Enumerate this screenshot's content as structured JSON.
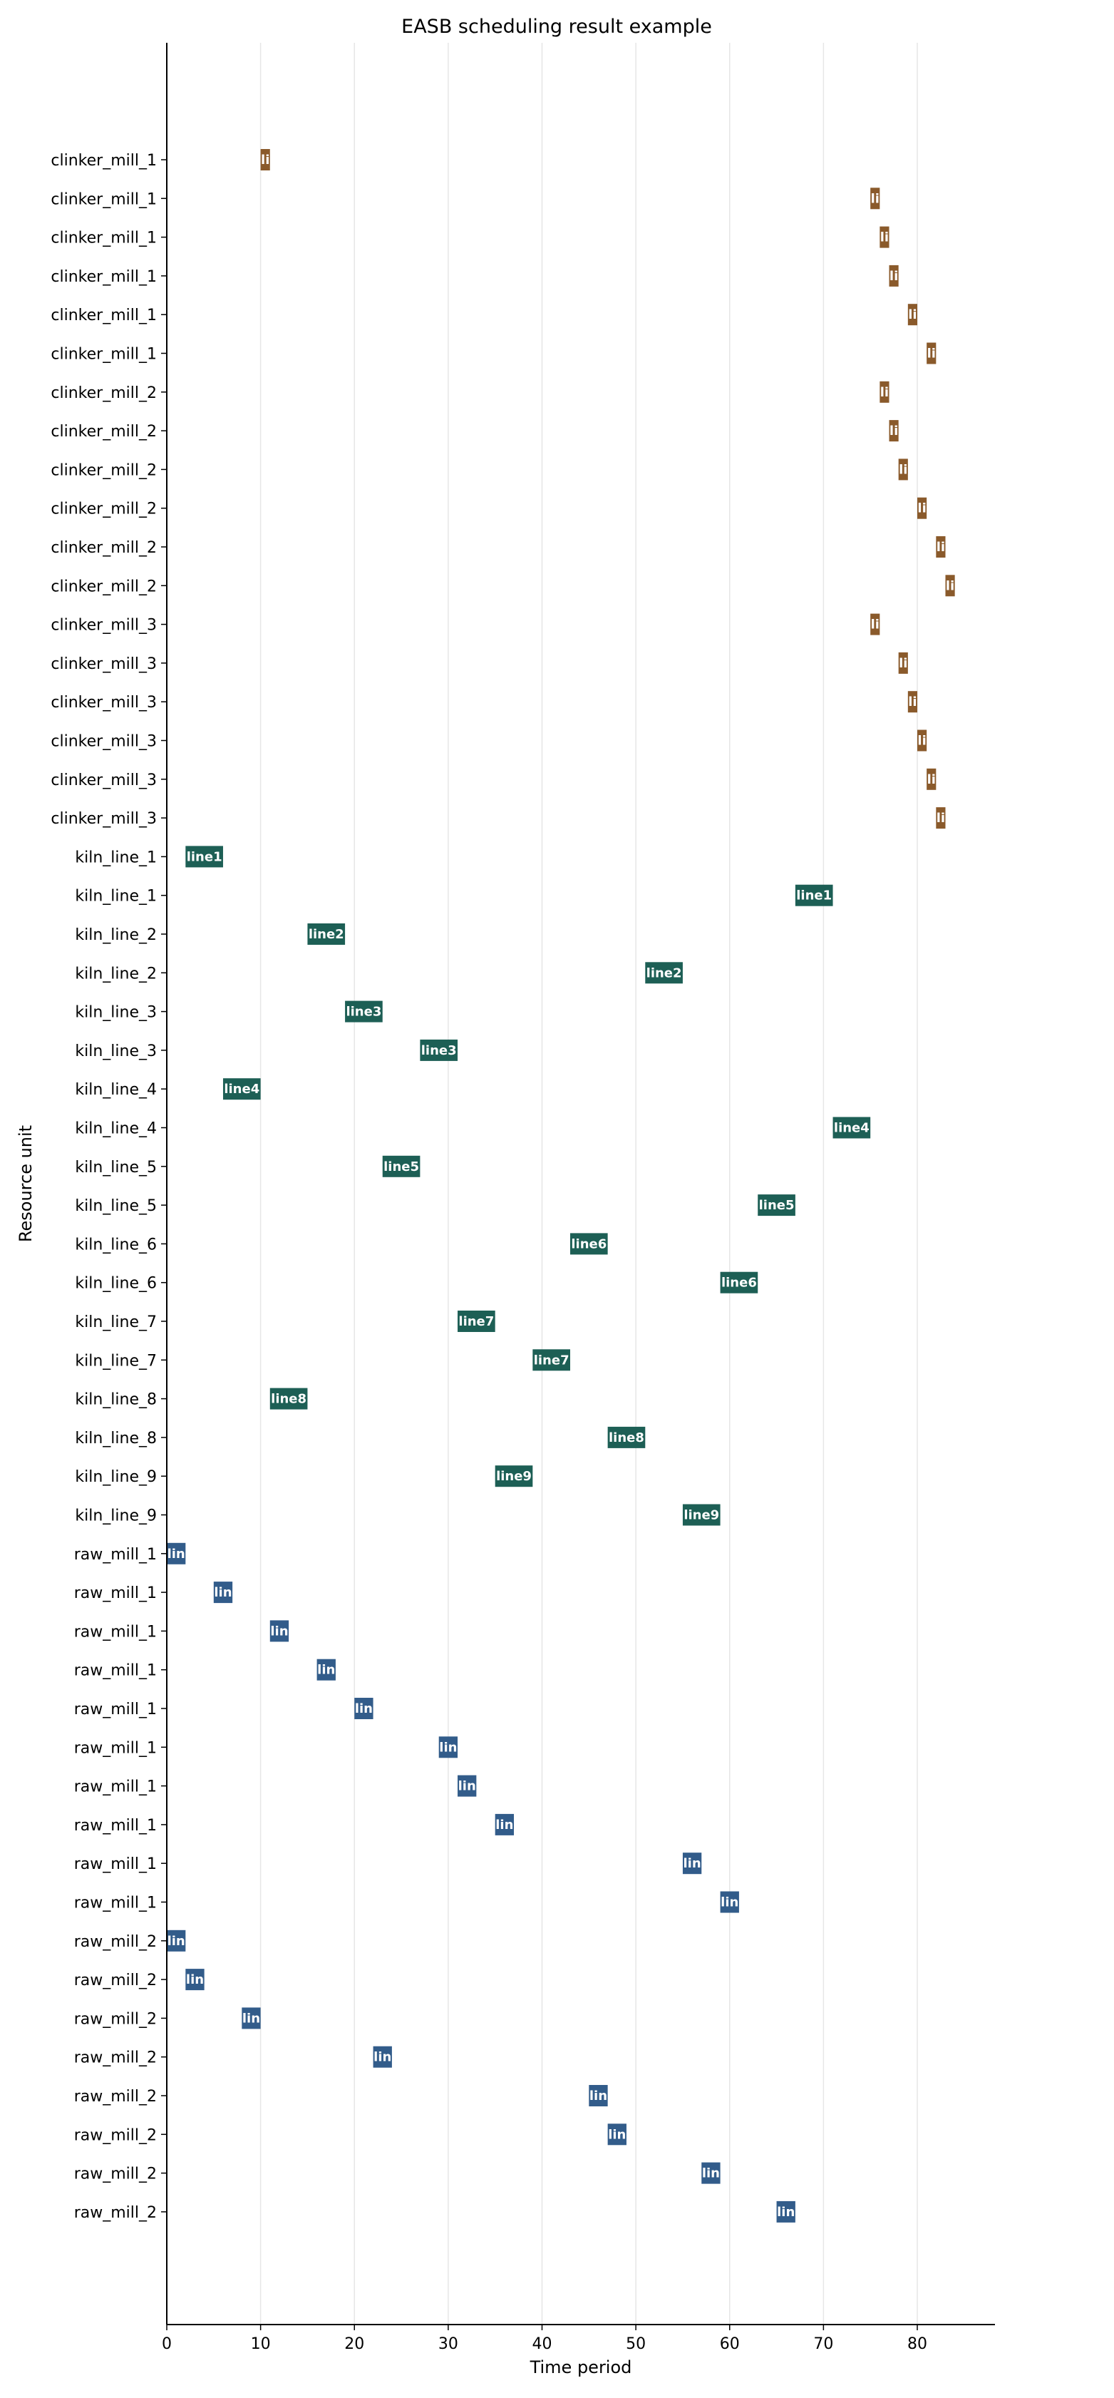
{
  "chart_data": {
    "type": "gantt",
    "title": "EASB scheduling result example",
    "xlabel": "Time period",
    "ylabel": "Resource unit",
    "xlim": [
      0,
      88
    ],
    "x_ticks": [
      0,
      10,
      20,
      30,
      40,
      50,
      60,
      70,
      80
    ],
    "grid": "vertical",
    "colors": {
      "clinker_mill": "#8a5a2b",
      "kiln_line": "#1d5f55",
      "raw_mill": "#325c8a",
      "grid": "#e6e6e6",
      "axis": "#000000"
    },
    "rows": [
      {
        "label": "clinker_mill_1",
        "group": "clinker_mill",
        "start": 10,
        "end": 11,
        "text": "li"
      },
      {
        "label": "clinker_mill_1",
        "group": "clinker_mill",
        "start": 75,
        "end": 76,
        "text": "li"
      },
      {
        "label": "clinker_mill_1",
        "group": "clinker_mill",
        "start": 76,
        "end": 77,
        "text": "li"
      },
      {
        "label": "clinker_mill_1",
        "group": "clinker_mill",
        "start": 77,
        "end": 78,
        "text": "li"
      },
      {
        "label": "clinker_mill_1",
        "group": "clinker_mill",
        "start": 79,
        "end": 80,
        "text": "li"
      },
      {
        "label": "clinker_mill_1",
        "group": "clinker_mill",
        "start": 81,
        "end": 82,
        "text": "li"
      },
      {
        "label": "clinker_mill_2",
        "group": "clinker_mill",
        "start": 76,
        "end": 77,
        "text": "li"
      },
      {
        "label": "clinker_mill_2",
        "group": "clinker_mill",
        "start": 77,
        "end": 78,
        "text": "li"
      },
      {
        "label": "clinker_mill_2",
        "group": "clinker_mill",
        "start": 78,
        "end": 79,
        "text": "li"
      },
      {
        "label": "clinker_mill_2",
        "group": "clinker_mill",
        "start": 80,
        "end": 81,
        "text": "li"
      },
      {
        "label": "clinker_mill_2",
        "group": "clinker_mill",
        "start": 82,
        "end": 83,
        "text": "li"
      },
      {
        "label": "clinker_mill_2",
        "group": "clinker_mill",
        "start": 83,
        "end": 84,
        "text": "li"
      },
      {
        "label": "clinker_mill_3",
        "group": "clinker_mill",
        "start": 75,
        "end": 76,
        "text": "li"
      },
      {
        "label": "clinker_mill_3",
        "group": "clinker_mill",
        "start": 78,
        "end": 79,
        "text": "li"
      },
      {
        "label": "clinker_mill_3",
        "group": "clinker_mill",
        "start": 79,
        "end": 80,
        "text": "li"
      },
      {
        "label": "clinker_mill_3",
        "group": "clinker_mill",
        "start": 80,
        "end": 81,
        "text": "li"
      },
      {
        "label": "clinker_mill_3",
        "group": "clinker_mill",
        "start": 81,
        "end": 82,
        "text": "li"
      },
      {
        "label": "clinker_mill_3",
        "group": "clinker_mill",
        "start": 82,
        "end": 83,
        "text": "li"
      },
      {
        "label": "kiln_line_1",
        "group": "kiln_line",
        "start": 2,
        "end": 6,
        "text": "line1"
      },
      {
        "label": "kiln_line_1",
        "group": "kiln_line",
        "start": 67,
        "end": 71,
        "text": "line1"
      },
      {
        "label": "kiln_line_2",
        "group": "kiln_line",
        "start": 15,
        "end": 19,
        "text": "line2"
      },
      {
        "label": "kiln_line_2",
        "group": "kiln_line",
        "start": 51,
        "end": 55,
        "text": "line2"
      },
      {
        "label": "kiln_line_3",
        "group": "kiln_line",
        "start": 19,
        "end": 23,
        "text": "line3"
      },
      {
        "label": "kiln_line_3",
        "group": "kiln_line",
        "start": 27,
        "end": 31,
        "text": "line3"
      },
      {
        "label": "kiln_line_4",
        "group": "kiln_line",
        "start": 6,
        "end": 10,
        "text": "line4"
      },
      {
        "label": "kiln_line_4",
        "group": "kiln_line",
        "start": 71,
        "end": 75,
        "text": "line4"
      },
      {
        "label": "kiln_line_5",
        "group": "kiln_line",
        "start": 23,
        "end": 27,
        "text": "line5"
      },
      {
        "label": "kiln_line_5",
        "group": "kiln_line",
        "start": 63,
        "end": 67,
        "text": "line5"
      },
      {
        "label": "kiln_line_6",
        "group": "kiln_line",
        "start": 43,
        "end": 47,
        "text": "line6"
      },
      {
        "label": "kiln_line_6",
        "group": "kiln_line",
        "start": 59,
        "end": 63,
        "text": "line6"
      },
      {
        "label": "kiln_line_7",
        "group": "kiln_line",
        "start": 31,
        "end": 35,
        "text": "line7"
      },
      {
        "label": "kiln_line_7",
        "group": "kiln_line",
        "start": 39,
        "end": 43,
        "text": "line7"
      },
      {
        "label": "kiln_line_8",
        "group": "kiln_line",
        "start": 11,
        "end": 15,
        "text": "line8"
      },
      {
        "label": "kiln_line_8",
        "group": "kiln_line",
        "start": 47,
        "end": 51,
        "text": "line8"
      },
      {
        "label": "kiln_line_9",
        "group": "kiln_line",
        "start": 35,
        "end": 39,
        "text": "line9"
      },
      {
        "label": "kiln_line_9",
        "group": "kiln_line",
        "start": 55,
        "end": 59,
        "text": "line9"
      },
      {
        "label": "raw_mill_1",
        "group": "raw_mill",
        "start": 0,
        "end": 2,
        "text": "lin"
      },
      {
        "label": "raw_mill_1",
        "group": "raw_mill",
        "start": 5,
        "end": 7,
        "text": "lin"
      },
      {
        "label": "raw_mill_1",
        "group": "raw_mill",
        "start": 11,
        "end": 13,
        "text": "lin"
      },
      {
        "label": "raw_mill_1",
        "group": "raw_mill",
        "start": 16,
        "end": 18,
        "text": "lin"
      },
      {
        "label": "raw_mill_1",
        "group": "raw_mill",
        "start": 20,
        "end": 22,
        "text": "lin"
      },
      {
        "label": "raw_mill_1",
        "group": "raw_mill",
        "start": 29,
        "end": 31,
        "text": "lin"
      },
      {
        "label": "raw_mill_1",
        "group": "raw_mill",
        "start": 31,
        "end": 33,
        "text": "lin"
      },
      {
        "label": "raw_mill_1",
        "group": "raw_mill",
        "start": 35,
        "end": 37,
        "text": "lin"
      },
      {
        "label": "raw_mill_1",
        "group": "raw_mill",
        "start": 55,
        "end": 57,
        "text": "lin"
      },
      {
        "label": "raw_mill_1",
        "group": "raw_mill",
        "start": 59,
        "end": 61,
        "text": "lin"
      },
      {
        "label": "raw_mill_2",
        "group": "raw_mill",
        "start": 0,
        "end": 2,
        "text": "lin"
      },
      {
        "label": "raw_mill_2",
        "group": "raw_mill",
        "start": 2,
        "end": 4,
        "text": "lin"
      },
      {
        "label": "raw_mill_2",
        "group": "raw_mill",
        "start": 8,
        "end": 10,
        "text": "lin"
      },
      {
        "label": "raw_mill_2",
        "group": "raw_mill",
        "start": 22,
        "end": 24,
        "text": "lin"
      },
      {
        "label": "raw_mill_2",
        "group": "raw_mill",
        "start": 45,
        "end": 47,
        "text": "lin"
      },
      {
        "label": "raw_mill_2",
        "group": "raw_mill",
        "start": 47,
        "end": 49,
        "text": "lin"
      },
      {
        "label": "raw_mill_2",
        "group": "raw_mill",
        "start": 57,
        "end": 59,
        "text": "lin"
      },
      {
        "label": "raw_mill_2",
        "group": "raw_mill",
        "start": 65,
        "end": 67,
        "text": "lin"
      }
    ]
  }
}
